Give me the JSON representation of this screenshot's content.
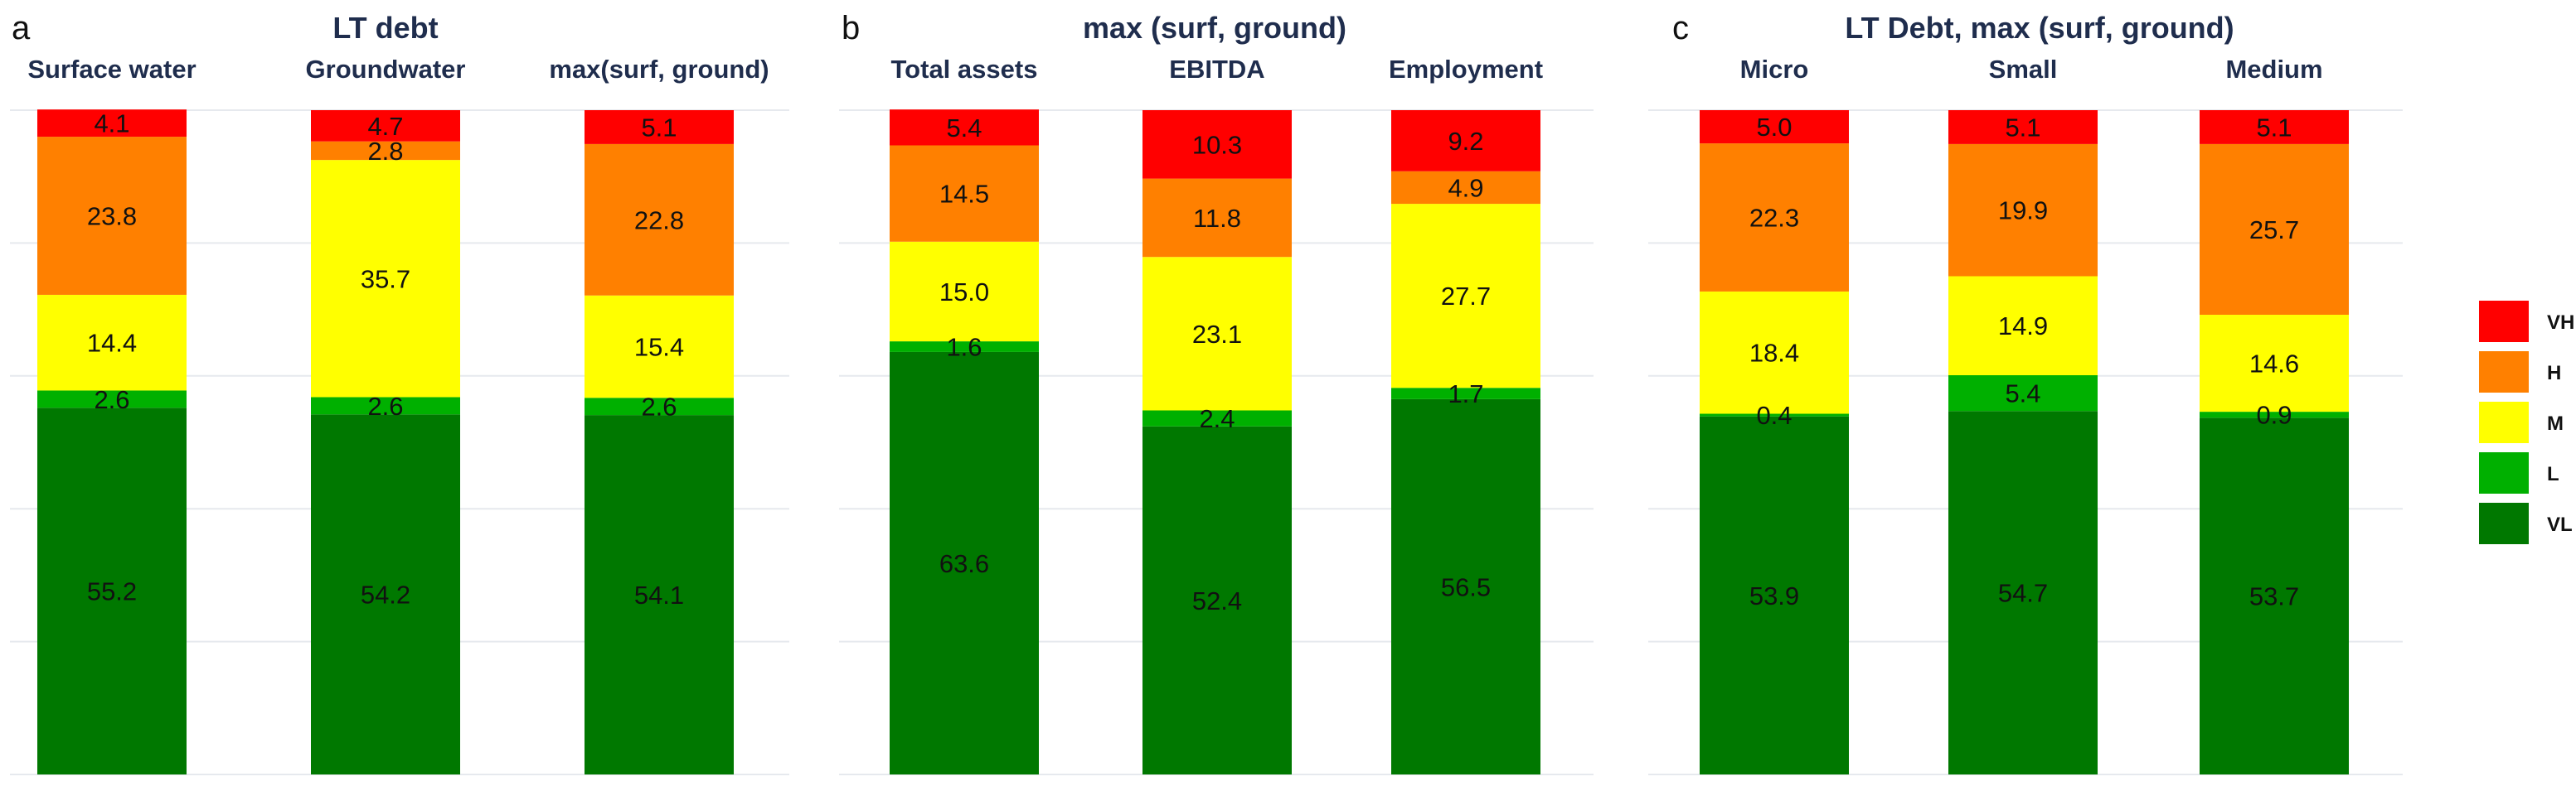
{
  "chart_data": {
    "type": "bar",
    "stacked": true,
    "normalized_percent": true,
    "ylim": [
      0,
      100
    ],
    "grid": true,
    "legend_position": "right",
    "legend": [
      {
        "key": "VH",
        "label": "VH",
        "color": "#ff0000"
      },
      {
        "key": "H",
        "label": "H",
        "color": "#ff8000"
      },
      {
        "key": "M",
        "label": "M",
        "color": "#ffff00"
      },
      {
        "key": "L",
        "label": "L",
        "color": "#00b000"
      },
      {
        "key": "VL",
        "label": "VL",
        "color": "#007800"
      }
    ],
    "panels": [
      {
        "letter": "a",
        "title": "LT debt",
        "bars": [
          {
            "label": "Surface water",
            "values": {
              "VL": 55.2,
              "L": 2.6,
              "M": 14.4,
              "H": 23.8,
              "VH": 4.1
            }
          },
          {
            "label": "Groundwater",
            "values": {
              "VL": 54.2,
              "L": 2.6,
              "M": 35.7,
              "H": 2.8,
              "VH": 4.7
            }
          },
          {
            "label": "max(surf, ground)",
            "values": {
              "VL": 54.1,
              "L": 2.6,
              "M": 15.4,
              "H": 22.8,
              "VH": 5.1
            }
          }
        ]
      },
      {
        "letter": "b",
        "title": "max (surf, ground)",
        "bars": [
          {
            "label": "Total assets",
            "values": {
              "VL": 63.6,
              "L": 1.6,
              "M": 15.0,
              "H": 14.5,
              "VH": 5.4
            }
          },
          {
            "label": "EBITDA",
            "values": {
              "VL": 52.4,
              "L": 2.4,
              "M": 23.1,
              "H": 11.8,
              "VH": 10.3
            }
          },
          {
            "label": "Employment",
            "values": {
              "VL": 56.5,
              "L": 1.7,
              "M": 27.7,
              "H": 4.9,
              "VH": 9.2
            }
          }
        ]
      },
      {
        "letter": "c",
        "title": "LT Debt, max (surf, ground)",
        "bars": [
          {
            "label": "Micro",
            "values": {
              "VL": 53.9,
              "L": 0.4,
              "M": 18.4,
              "H": 22.3,
              "VH": 5.0
            }
          },
          {
            "label": "Small",
            "values": {
              "VL": 54.7,
              "L": 5.4,
              "M": 14.9,
              "H": 19.9,
              "VH": 5.1
            }
          },
          {
            "label": "Medium",
            "values": {
              "VL": 53.7,
              "L": 0.9,
              "M": 14.6,
              "H": 25.7,
              "VH": 5.1
            }
          }
        ]
      }
    ]
  }
}
